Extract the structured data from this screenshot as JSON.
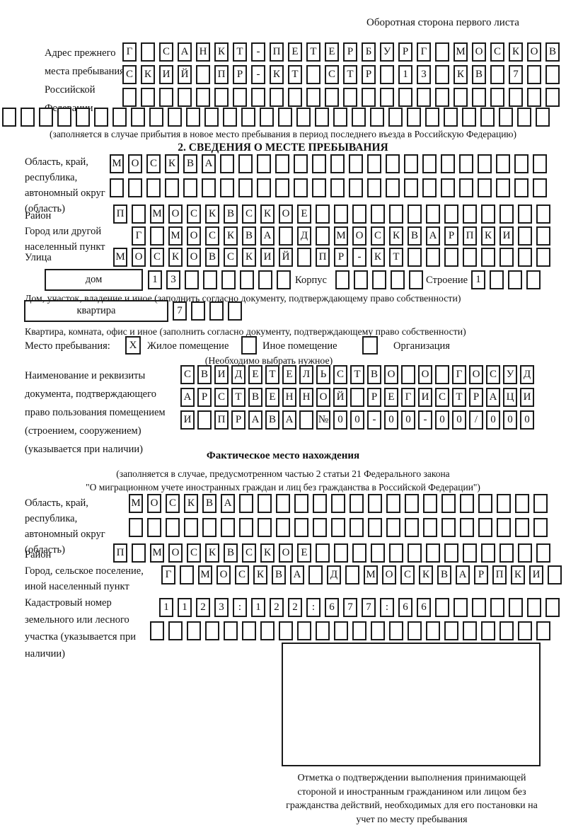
{
  "page": {
    "header_note": "Оборотная сторона первого листа"
  },
  "prev_address": {
    "label": "Адрес прежнего места пребывания в Российской Федерации",
    "row1": {
      "chars": [
        "Г",
        "",
        "С",
        "А",
        "Н",
        "К",
        "Т",
        "-",
        "П",
        "Е",
        "Т",
        "Е",
        "Р",
        "Б",
        "У",
        "Р",
        "Г",
        "",
        "М",
        "О",
        "С",
        "К",
        "О",
        "В"
      ],
      "total": 24
    },
    "row2": {
      "chars": [
        "С",
        "К",
        "И",
        "Й",
        "",
        "П",
        "Р",
        "-",
        "К",
        "Т",
        "",
        "С",
        "Т",
        "Р",
        "",
        "1",
        "3",
        "",
        "К",
        "В",
        "",
        "7",
        "",
        ""
      ],
      "total": 24
    },
    "row3": {
      "chars": [],
      "total": 24
    },
    "row4": {
      "chars": [],
      "total": 30
    },
    "note": "(заполняется в случае прибытия в новое место пребывания в период последнего въезда в Российскую Федерацию)"
  },
  "section2": {
    "title": "2. СВЕДЕНИЯ О МЕСТЕ ПРЕБЫВАНИЯ",
    "region": {
      "label": "Область, край, республика, автономный округ (область)",
      "row1": {
        "chars": [
          "М",
          "О",
          "С",
          "К",
          "В",
          "А"
        ],
        "total": 24
      },
      "row2": {
        "chars": [],
        "total": 24
      }
    },
    "district": {
      "label": "Район",
      "row": {
        "chars": [
          "П",
          "",
          "М",
          "О",
          "С",
          "К",
          "В",
          "С",
          "К",
          "О",
          "Е"
        ],
        "total": 24
      }
    },
    "city": {
      "label": "Город или другой населенный пункт",
      "row": {
        "chars": [
          "Г",
          "",
          "М",
          "О",
          "С",
          "К",
          "В",
          "А",
          "",
          "Д",
          "",
          "М",
          "О",
          "С",
          "К",
          "В",
          "А",
          "Р",
          "П",
          "К",
          "И"
        ],
        "total": 23
      }
    },
    "street": {
      "label": "Улица",
      "row": {
        "chars": [
          "М",
          "О",
          "С",
          "К",
          "О",
          "В",
          "С",
          "К",
          "И",
          "Й",
          "",
          "П",
          "Р",
          "-",
          "К",
          "Т"
        ],
        "total": 24
      }
    },
    "house": {
      "label": "дом",
      "row": {
        "chars": [
          "1",
          "3"
        ],
        "total": 8
      },
      "korpus_label": "Корпус",
      "korpus_row": {
        "chars": [],
        "total": 5
      },
      "stroenie_label": "Строение",
      "stroenie_row": {
        "chars": [
          "1"
        ],
        "total": 4
      }
    },
    "house_caption": "Дом, участок, владение и иное (заполнить согласно документу, подтверждающему право собственности)",
    "apartment": {
      "label": "квартира",
      "row": {
        "chars": [
          "7"
        ],
        "total": 4
      }
    },
    "apartment_caption": "Квартира, комната, офис и иное (заполнить согласно документу, подтверждающему право собственности)",
    "stay": {
      "label": "Место пребывания:",
      "options": [
        {
          "label": "Жилое помещение",
          "mark": "X"
        },
        {
          "label": "Иное помещение",
          "mark": ""
        },
        {
          "label": "Организация",
          "mark": ""
        }
      ],
      "note": "(Необходимо выбрать нужное)"
    },
    "document": {
      "label": "Наименование и реквизиты документа, подтверждающего право пользования помещением (строением, сооружением) (указывается при наличии)",
      "row1": {
        "chars": [
          "С",
          "В",
          "И",
          "Д",
          "Е",
          "Т",
          "Е",
          "Л",
          "Ь",
          "С",
          "Т",
          "В",
          "О",
          "",
          "О",
          "",
          "Г",
          "О",
          "С",
          "У",
          "Д"
        ],
        "total": 21
      },
      "row2": {
        "chars": [
          "А",
          "Р",
          "С",
          "Т",
          "В",
          "Е",
          "Н",
          "Н",
          "О",
          "Й",
          "",
          "Р",
          "Е",
          "Г",
          "И",
          "С",
          "Т",
          "Р",
          "А",
          "Ц",
          "И"
        ],
        "total": 21
      },
      "row3": {
        "chars": [
          "И",
          "",
          "П",
          "Р",
          "А",
          "В",
          "А",
          "",
          "№",
          "0",
          "0",
          "-",
          "0",
          "0",
          "-",
          "0",
          "0",
          "/",
          "0",
          "0",
          "0"
        ],
        "total": 21
      }
    }
  },
  "actual_location": {
    "title": "Фактическое место нахождения",
    "note_line1": "(заполняется в случае, предусмотренном частью 2 статьи 21 Федерального закона",
    "note_line2": "\"О миграционном учете иностранных граждан и лиц без гражданства в Российской Федерации\")",
    "region": {
      "label": "Область, край, республика, автономный округ (область)",
      "row1": {
        "chars": [
          "М",
          "О",
          "С",
          "К",
          "В",
          "А"
        ],
        "total": 23
      },
      "row2": {
        "chars": [],
        "total": 23
      }
    },
    "district": {
      "label": "Район",
      "row": {
        "chars": [
          "П",
          "",
          "М",
          "О",
          "С",
          "К",
          "В",
          "С",
          "К",
          "О",
          "Е"
        ],
        "total": 24
      }
    },
    "settlement": {
      "label": "Город, сельское поселение, иной населенный пункт",
      "row": {
        "chars": [
          "Г",
          "",
          "М",
          "О",
          "С",
          "К",
          "В",
          "А",
          "",
          "Д",
          "",
          "М",
          "О",
          "С",
          "К",
          "В",
          "А",
          "Р",
          "П",
          "К",
          "И"
        ],
        "total": 22
      }
    },
    "cadastral": {
      "label": "Кадастровый номер земельного или лесного участка (указывается при наличии)",
      "row1": {
        "chars": [
          "1",
          "1",
          "2",
          "3",
          ":",
          "1",
          "2",
          "2",
          ":",
          "6",
          "7",
          "7",
          ":",
          "6",
          "6"
        ],
        "total": 22
      },
      "row2": {
        "chars": [],
        "total": 22
      }
    },
    "stamp_note": "Отметка о подтверждении выполнения принимающей стороной и иностранным гражданином или лицом без гражданства действий, необходимых для его постановки на учет по месту пребывания"
  }
}
